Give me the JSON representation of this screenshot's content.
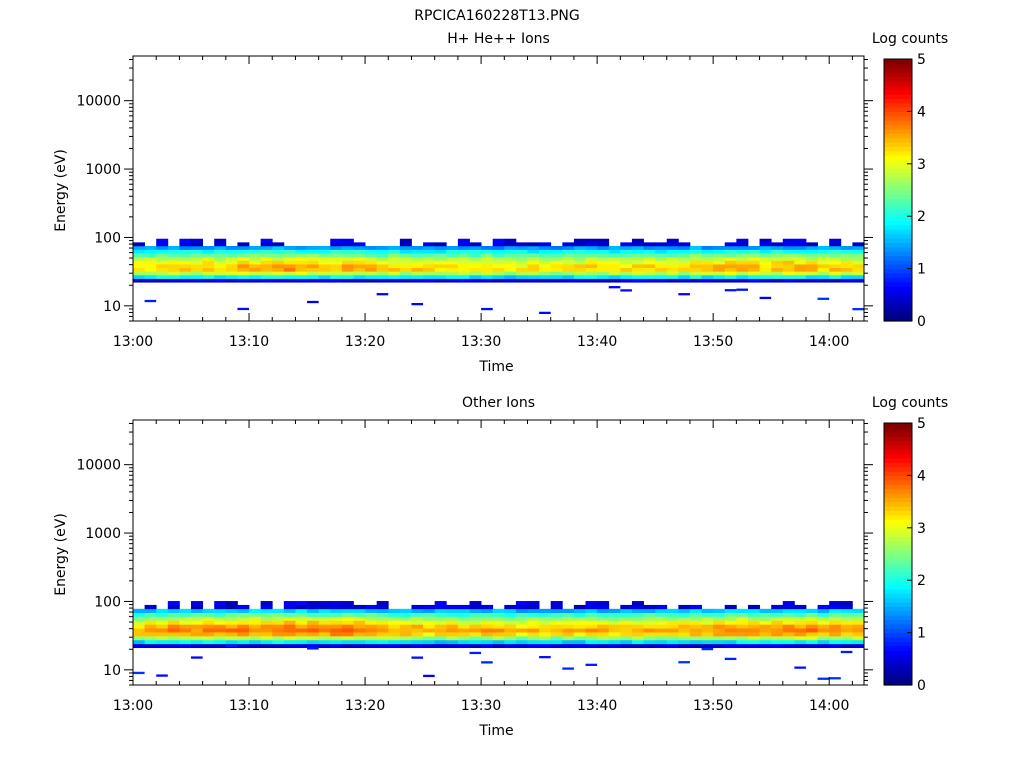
{
  "page_title": "RPCICA160228T13.PNG",
  "chart_data": [
    {
      "type": "heatmap",
      "title": "H+ He++ Ions",
      "xlabel": "Time",
      "ylabel": "Energy (eV)",
      "x_ticks": [
        "13:00",
        "13:10",
        "13:20",
        "13:30",
        "13:40",
        "13:50",
        "14:00"
      ],
      "x_range_minutes": [
        0,
        63
      ],
      "y_scale": "log",
      "y_ticks": [
        "10",
        "100",
        "1000",
        "10000"
      ],
      "y_range_eV": [
        6,
        45000
      ],
      "colorbar": {
        "label": "Log counts",
        "ticks": [
          "0",
          "1",
          "2",
          "3",
          "4",
          "5"
        ],
        "range": [
          0,
          5
        ],
        "colormap": "jet"
      },
      "band": {
        "energy_lower_eV": 25,
        "energy_upper_eV": 75,
        "peak_energy_eV": 35,
        "peak_log_counts": [
          3.3,
          3.3,
          3.4,
          3.5,
          3.4,
          3.4,
          3.5,
          3.4,
          3.5,
          3.6,
          3.5,
          3.5,
          3.6,
          3.7,
          3.6,
          3.6,
          3.5,
          3.5,
          3.6,
          3.5,
          3.5,
          3.4,
          3.4,
          3.3,
          3.4,
          3.3,
          3.3,
          3.4,
          3.3,
          3.3,
          3.4,
          3.3,
          3.2,
          3.2,
          3.3,
          3.3,
          3.2,
          3.3,
          3.3,
          3.4,
          3.3,
          3.3,
          3.3,
          3.4,
          3.4,
          3.3,
          3.4,
          3.3,
          3.5,
          3.4,
          3.5,
          3.6,
          3.5,
          3.5,
          3.4,
          3.5,
          3.6,
          3.5,
          3.5,
          3.4,
          3.5,
          3.4,
          3.4
        ]
      }
    },
    {
      "type": "heatmap",
      "title": "Other Ions",
      "xlabel": "Time",
      "ylabel": "Energy (eV)",
      "x_ticks": [
        "13:00",
        "13:10",
        "13:20",
        "13:30",
        "13:40",
        "13:50",
        "14:00"
      ],
      "x_range_minutes": [
        0,
        63
      ],
      "y_scale": "log",
      "y_ticks": [
        "10",
        "100",
        "1000",
        "10000"
      ],
      "y_range_eV": [
        6,
        45000
      ],
      "colorbar": {
        "label": "Log counts",
        "ticks": [
          "0",
          "1",
          "2",
          "3",
          "4",
          "5"
        ],
        "range": [
          0,
          5
        ],
        "colormap": "jet"
      },
      "band": {
        "energy_lower_eV": 24,
        "energy_upper_eV": 78,
        "peak_energy_eV": 37,
        "peak_log_counts": [
          3.5,
          3.6,
          3.7,
          3.8,
          3.7,
          3.7,
          3.8,
          3.8,
          3.8,
          3.9,
          3.8,
          3.8,
          3.9,
          4.0,
          3.9,
          3.9,
          3.8,
          3.9,
          3.9,
          3.8,
          3.8,
          3.7,
          3.6,
          3.6,
          3.6,
          3.5,
          3.5,
          3.6,
          3.5,
          3.5,
          3.6,
          3.6,
          3.5,
          3.4,
          3.5,
          3.5,
          3.4,
          3.5,
          3.5,
          3.6,
          3.5,
          3.5,
          3.5,
          3.6,
          3.6,
          3.5,
          3.6,
          3.6,
          3.7,
          3.6,
          3.7,
          3.8,
          3.8,
          3.8,
          3.7,
          3.8,
          3.8,
          3.8,
          3.8,
          3.7,
          3.8,
          3.7,
          3.7
        ]
      }
    }
  ]
}
